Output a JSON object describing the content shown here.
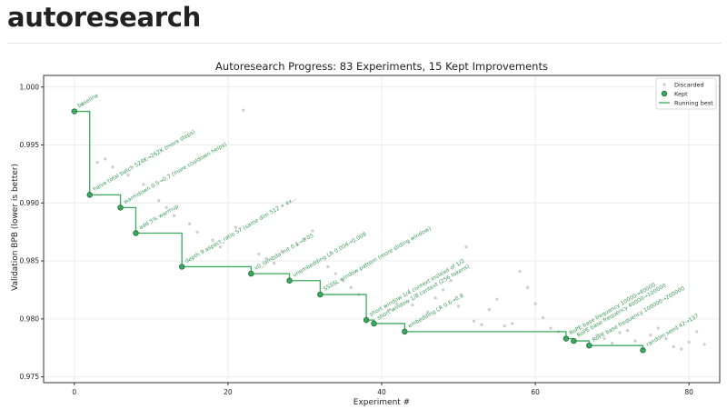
{
  "page": {
    "title": "autoresearch"
  },
  "colors": {
    "kept": "#3aaa5e",
    "kept_edge": "#1e6b36",
    "running_best": "#3aaa5e",
    "discarded": "#cccccc",
    "annotation": "#3a9a55",
    "axis": "#333333",
    "grid": "#ececec"
  },
  "chart_data": {
    "type": "scatter",
    "title": "Autoresearch Progress: 83 Experiments, 15 Kept Improvements",
    "xlabel": "Experiment #",
    "ylabel": "Validation BPB (lower is better)",
    "xlim": [
      -4,
      84
    ],
    "ylim": [
      0.9745,
      1.001
    ],
    "xticks": [
      0,
      20,
      40,
      60,
      80
    ],
    "yticks": [
      0.975,
      0.98,
      0.985,
      0.99,
      0.995,
      1.0
    ],
    "ytick_labels": [
      "0.975",
      "0.980",
      "0.985",
      "0.990",
      "0.995",
      "1.000"
    ],
    "grid": true,
    "legend": {
      "placement": "top-right",
      "entries": [
        "Discarded",
        "Kept",
        "Running best"
      ]
    },
    "series": [
      {
        "name": "Discarded",
        "points": [
          [
            1,
            0.9985
          ],
          [
            3,
            0.9935
          ],
          [
            4,
            0.9938
          ],
          [
            5,
            0.9931
          ],
          [
            7,
            0.9924
          ],
          [
            9,
            0.9916
          ],
          [
            11,
            0.9902
          ],
          [
            12,
            0.9896
          ],
          [
            13,
            0.9889
          ],
          [
            15,
            0.9882
          ],
          [
            16,
            0.9875
          ],
          [
            18,
            0.9868
          ],
          [
            19,
            0.9862
          ],
          [
            21,
            0.9879
          ],
          [
            22,
            0.998
          ],
          [
            24,
            0.9856
          ],
          [
            25,
            0.9852
          ],
          [
            26,
            0.9848
          ],
          [
            27,
            0.9858
          ],
          [
            29,
            0.9864
          ],
          [
            30,
            0.9869
          ],
          [
            31,
            0.9876
          ],
          [
            33,
            0.9845
          ],
          [
            34,
            0.9839
          ],
          [
            35,
            0.9833
          ],
          [
            36,
            0.9827
          ],
          [
            37,
            0.9821
          ],
          [
            41,
            0.9808
          ],
          [
            42,
            0.9813
          ],
          [
            44,
            0.9812
          ],
          [
            46,
            0.9806
          ],
          [
            47,
            0.9818
          ],
          [
            48,
            0.9825
          ],
          [
            49,
            0.9833
          ],
          [
            50,
            0.9811
          ],
          [
            51,
            0.9862
          ],
          [
            52,
            0.9798
          ],
          [
            53,
            0.9795
          ],
          [
            54,
            0.9808
          ],
          [
            55,
            0.9817
          ],
          [
            56,
            0.9794
          ],
          [
            57,
            0.9796
          ],
          [
            58,
            0.9841
          ],
          [
            59,
            0.9827
          ],
          [
            60,
            0.9813
          ],
          [
            61,
            0.9801
          ],
          [
            62,
            0.9792
          ],
          [
            63,
            0.9789
          ],
          [
            68,
            0.9786
          ],
          [
            69,
            0.9783
          ],
          [
            70,
            0.9779
          ],
          [
            71,
            0.9788
          ],
          [
            72,
            0.979
          ],
          [
            73,
            0.9781
          ],
          [
            75,
            0.9786
          ],
          [
            76,
            0.9792
          ],
          [
            77,
            0.9783
          ],
          [
            78,
            0.9776
          ],
          [
            79,
            0.9774
          ],
          [
            80,
            0.978
          ],
          [
            81,
            0.9789
          ],
          [
            82,
            0.9778
          ]
        ]
      },
      {
        "name": "Kept",
        "points": [
          [
            0,
            0.9979
          ],
          [
            2,
            0.9907
          ],
          [
            6,
            0.9896
          ],
          [
            8,
            0.9874
          ],
          [
            14,
            0.9845
          ],
          [
            23,
            0.9839
          ],
          [
            28,
            0.9833
          ],
          [
            32,
            0.9821
          ],
          [
            38,
            0.9799
          ],
          [
            39,
            0.9796
          ],
          [
            43,
            0.9789
          ],
          [
            64,
            0.9783
          ],
          [
            65,
            0.9781
          ],
          [
            67,
            0.9777
          ],
          [
            74,
            0.9773
          ]
        ]
      }
    ],
    "running_best": {
      "name": "Running best",
      "last_x": 74
    },
    "annotations": [
      "baseline",
      "halve total batch 524K→262K (more steps)",
      "warmdown 0.5→0.7 (more cooldown helps)",
      "add 5% warmup",
      "depth 9 aspect_ratio 57 (same dim 512 + ex...",
      "x0_lambda init 0.1→0.05",
      "unembedding LR 0.004→0.008",
      "SSSSL window pattern (more sliding window)",
      "short window 1/4 context instead of 1/2",
      "short window 1/8 context (256 tokens)",
      "embedding LR 0.6→0.8",
      "RoPE base frequency 10000→40000",
      "RoPE base frequency 40000→100000",
      "RoPE base frequency 100000→200000",
      "random seed 42→137"
    ]
  }
}
